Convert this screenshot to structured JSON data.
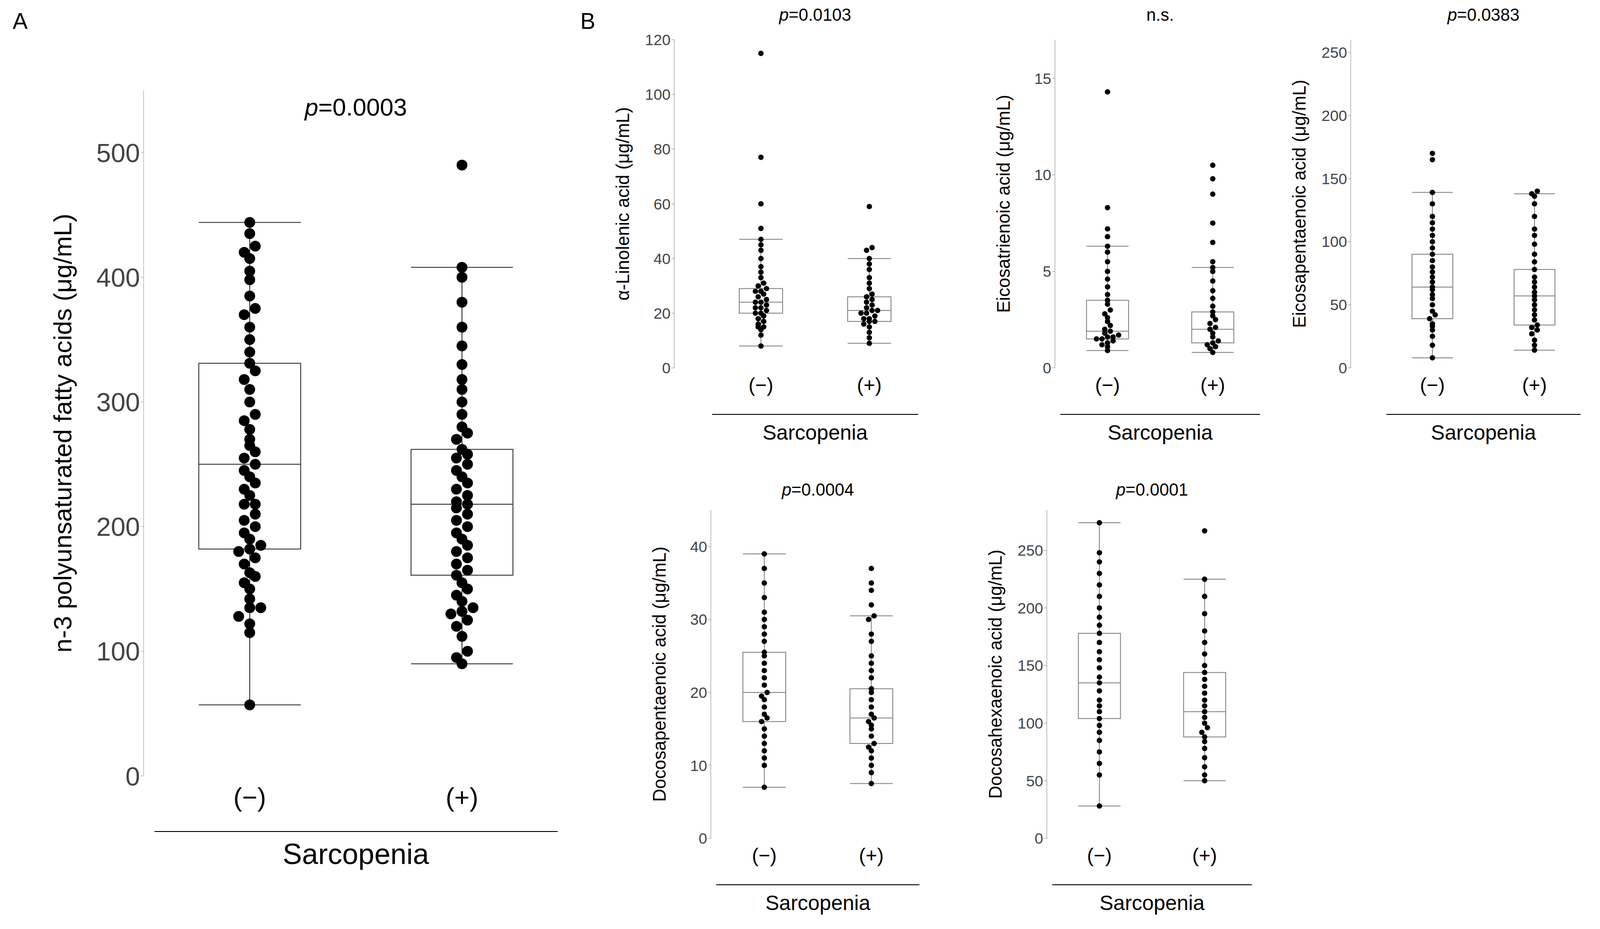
{
  "chart_data": [
    {
      "type": "box",
      "panel": "A",
      "annotation": "p=0.0003",
      "y_label": "n-3 polyunsaturated fatty acids (μg/mL)",
      "x_label": "Sarcopenia",
      "categories": [
        "(−)",
        "(+)"
      ],
      "ylim": [
        0,
        550
      ],
      "yticks": [
        0,
        100,
        200,
        300,
        400,
        500
      ],
      "color": "#000000",
      "boxes": [
        {
          "min": 57,
          "q1": 182,
          "median": 250,
          "q3": 331,
          "max": 444
        },
        {
          "min": 90,
          "q1": 161,
          "median": 218,
          "q3": 262,
          "max": 408
        }
      ],
      "points": [
        [
          57,
          115,
          122,
          128,
          135,
          135,
          142,
          150,
          155,
          160,
          163,
          170,
          175,
          180,
          182,
          185,
          190,
          195,
          200,
          205,
          210,
          218,
          218,
          225,
          230,
          235,
          240,
          245,
          250,
          255,
          260,
          265,
          270,
          278,
          285,
          290,
          300,
          310,
          318,
          325,
          331,
          340,
          350,
          360,
          370,
          375,
          385,
          398,
          405,
          415,
          420,
          425,
          435,
          444
        ],
        [
          90,
          95,
          100,
          112,
          120,
          125,
          130,
          132,
          135,
          140,
          145,
          150,
          155,
          161,
          165,
          170,
          175,
          180,
          185,
          190,
          195,
          200,
          205,
          210,
          215,
          218,
          220,
          225,
          230,
          235,
          240,
          245,
          250,
          255,
          258,
          262,
          270,
          275,
          280,
          290,
          300,
          310,
          318,
          330,
          345,
          360,
          380,
          400,
          408,
          490
        ]
      ]
    },
    {
      "type": "box",
      "panel": "B",
      "annotation": "p=0.0103",
      "y_label": "α-Linolenic acid (μg/mL)",
      "x_label": "Sarcopenia",
      "categories": [
        "(−)",
        "(+)"
      ],
      "ylim": [
        0,
        120
      ],
      "yticks": [
        0,
        20,
        40,
        60,
        80,
        100,
        120
      ],
      "color": "#000000",
      "boxes": [
        {
          "min": 8,
          "q1": 20,
          "median": 24,
          "q3": 29,
          "max": 47
        },
        {
          "min": 9,
          "q1": 17,
          "median": 21,
          "q3": 26,
          "max": 40
        }
      ],
      "points": [
        [
          8,
          12,
          14,
          15,
          15,
          16,
          17,
          18,
          19,
          20,
          20,
          21,
          22,
          22,
          23,
          24,
          24,
          25,
          26,
          27,
          28,
          28,
          29,
          30,
          31,
          33,
          35,
          37,
          40,
          43,
          45,
          47,
          51,
          60,
          77,
          115
        ],
        [
          9,
          11,
          13,
          15,
          16,
          17,
          17,
          18,
          18,
          19,
          20,
          20,
          21,
          21,
          22,
          23,
          24,
          25,
          26,
          27,
          29,
          31,
          33,
          36,
          38,
          40,
          43,
          44,
          59
        ]
      ]
    },
    {
      "type": "box",
      "annotation": "n.s.",
      "y_label": "Eicosatrienoic acid (μg/mL)",
      "x_label": "Sarcopenia",
      "categories": [
        "(−)",
        "(+)"
      ],
      "ylim": [
        0,
        17
      ],
      "yticks": [
        0,
        5,
        10,
        15
      ],
      "color": "#000000",
      "boxes": [
        {
          "min": 0.9,
          "q1": 1.5,
          "median": 1.9,
          "q3": 3.5,
          "max": 6.3
        },
        {
          "min": 0.8,
          "q1": 1.3,
          "median": 2.0,
          "q3": 2.9,
          "max": 5.2
        }
      ],
      "points": [
        [
          0.9,
          1.1,
          1.2,
          1.3,
          1.4,
          1.5,
          1.5,
          1.6,
          1.6,
          1.7,
          1.8,
          1.9,
          2.0,
          2.2,
          2.4,
          2.6,
          2.8,
          3.0,
          3.3,
          3.5,
          3.8,
          4.2,
          4.6,
          5.0,
          5.5,
          6.0,
          6.3,
          6.8,
          7.2,
          8.3,
          14.3
        ],
        [
          0.8,
          1.0,
          1.1,
          1.2,
          1.3,
          1.4,
          1.6,
          1.8,
          2.0,
          2.1,
          2.3,
          2.5,
          2.7,
          2.9,
          3.2,
          3.6,
          4.0,
          4.5,
          5.0,
          5.2,
          5.5,
          6.5,
          7.5,
          9.0,
          9.8,
          10.5
        ]
      ]
    },
    {
      "type": "box",
      "annotation": "p=0.0383",
      "y_label": "Eicosapentaenoic acid (μg/mL)",
      "x_label": "Sarcopenia",
      "categories": [
        "(−)",
        "(+)"
      ],
      "ylim": [
        0,
        260
      ],
      "yticks": [
        0,
        50,
        100,
        150,
        200,
        250
      ],
      "color": "#000000",
      "boxes": [
        {
          "min": 8,
          "q1": 39,
          "median": 64,
          "q3": 90,
          "max": 139
        },
        {
          "min": 14,
          "q1": 34,
          "median": 57,
          "q3": 78,
          "max": 138
        }
      ],
      "points": [
        [
          8,
          18,
          25,
          30,
          33,
          35,
          39,
          42,
          45,
          50,
          55,
          58,
          62,
          64,
          68,
          72,
          76,
          80,
          85,
          90,
          95,
          100,
          105,
          110,
          115,
          120,
          130,
          139,
          165,
          170
        ],
        [
          14,
          18,
          22,
          27,
          30,
          32,
          34,
          38,
          42,
          46,
          50,
          54,
          57,
          60,
          64,
          68,
          72,
          78,
          84,
          90,
          98,
          105,
          110,
          120,
          130,
          136,
          138,
          140
        ]
      ]
    },
    {
      "type": "box",
      "annotation": "p=0.0004",
      "y_label": "Docosapentaenoic acid (μg/mL)",
      "x_label": "Sarcopenia",
      "categories": [
        "(−)",
        "(+)"
      ],
      "ylim": [
        0,
        45
      ],
      "yticks": [
        0,
        10,
        20,
        30,
        40
      ],
      "color": "#000000",
      "boxes": [
        {
          "min": 7,
          "q1": 16,
          "median": 20,
          "q3": 25.5,
          "max": 39
        },
        {
          "min": 7.5,
          "q1": 13,
          "median": 16.5,
          "q3": 20.5,
          "max": 30.5
        }
      ],
      "points": [
        [
          7,
          10,
          11,
          12,
          13,
          14,
          15,
          16,
          16.5,
          17,
          18,
          19,
          19.5,
          20,
          21,
          22,
          23,
          24,
          25,
          25.5,
          27,
          28,
          29,
          30,
          31,
          33,
          35,
          37,
          39
        ],
        [
          7.5,
          9,
          10,
          11,
          12,
          12.5,
          13,
          14,
          15,
          15.5,
          16,
          16.5,
          17,
          18,
          19,
          20,
          20.5,
          22,
          23,
          24,
          25,
          27,
          28,
          30,
          30.5,
          32,
          34,
          35,
          37
        ]
      ]
    },
    {
      "type": "box",
      "annotation": "p=0.0001",
      "y_label": "Docosahexaenoic acid (μg/mL)",
      "x_label": "Sarcopenia",
      "categories": [
        "(−)",
        "(+)"
      ],
      "ylim": [
        0,
        285
      ],
      "yticks": [
        0,
        50,
        100,
        150,
        200,
        250
      ],
      "color": "#000000",
      "boxes": [
        {
          "min": 28,
          "q1": 104,
          "median": 135,
          "q3": 178,
          "max": 274
        },
        {
          "min": 50,
          "q1": 88,
          "median": 110,
          "q3": 144,
          "max": 225
        }
      ],
      "points": [
        [
          28,
          55,
          65,
          75,
          85,
          92,
          98,
          104,
          110,
          115,
          120,
          128,
          135,
          140,
          148,
          155,
          162,
          170,
          178,
          185,
          192,
          200,
          210,
          220,
          230,
          240,
          248,
          274
        ],
        [
          50,
          55,
          62,
          70,
          78,
          84,
          88,
          92,
          96,
          100,
          105,
          110,
          115,
          120,
          126,
          132,
          138,
          144,
          150,
          160,
          170,
          180,
          195,
          210,
          225,
          267
        ]
      ]
    }
  ]
}
